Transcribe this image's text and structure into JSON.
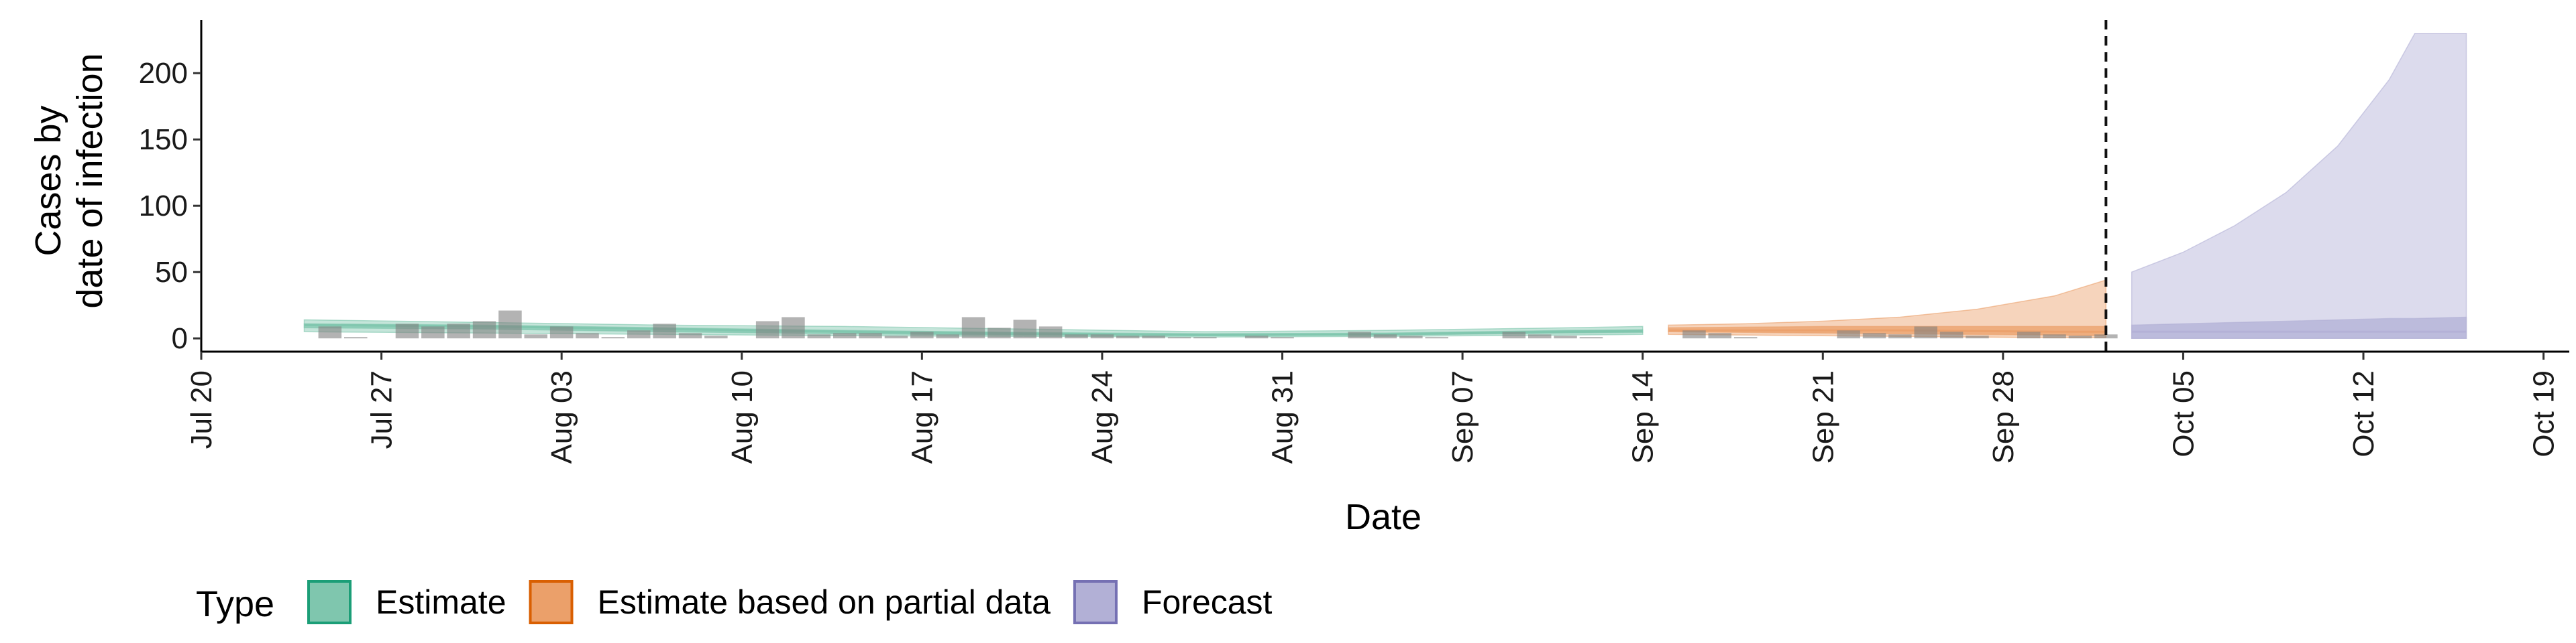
{
  "chart_data": {
    "type": "area",
    "xlabel": "Date",
    "ylabel_lines": [
      "Cases by",
      "date of infection"
    ],
    "x_axis": {
      "type": "date",
      "min": "2020-07-20",
      "max": "2020-10-20",
      "year": 2020
    },
    "ylim": [
      -10,
      240
    ],
    "yticks": [
      0,
      50,
      100,
      150,
      200
    ],
    "xticks": [
      {
        "date": "2020-07-20",
        "label": "Jul 20"
      },
      {
        "date": "2020-07-27",
        "label": "Jul 27"
      },
      {
        "date": "2020-08-03",
        "label": "Aug 03"
      },
      {
        "date": "2020-08-10",
        "label": "Aug 10"
      },
      {
        "date": "2020-08-17",
        "label": "Aug 17"
      },
      {
        "date": "2020-08-24",
        "label": "Aug 24"
      },
      {
        "date": "2020-08-31",
        "label": "Aug 31"
      },
      {
        "date": "2020-09-07",
        "label": "Sep 07"
      },
      {
        "date": "2020-09-14",
        "label": "Sep 14"
      },
      {
        "date": "2020-09-21",
        "label": "Sep 21"
      },
      {
        "date": "2020-09-28",
        "label": "Sep 28"
      },
      {
        "date": "2020-10-05",
        "label": "Oct 05"
      },
      {
        "date": "2020-10-12",
        "label": "Oct 12"
      },
      {
        "date": "2020-10-19",
        "label": "Oct 19"
      }
    ],
    "reference_line": {
      "date": "2020-10-02",
      "style": "dashed"
    },
    "grid": false,
    "legend": {
      "position": "bottom-left",
      "title": "Type",
      "entries": [
        {
          "label": "Estimate",
          "fill": "#7fc6ae",
          "stroke": "#1b9e77"
        },
        {
          "label": "Estimate based on partial data",
          "fill": "#eba06a",
          "stroke": "#d95f02"
        },
        {
          "label": "Forecast",
          "fill": "#b2b0d6",
          "stroke": "#7570b3"
        }
      ]
    },
    "bars": {
      "name": "Reported cases",
      "color": "#808080",
      "dates": [
        "2020-07-25",
        "2020-07-26",
        "2020-07-28",
        "2020-07-29",
        "2020-07-30",
        "2020-07-31",
        "2020-08-01",
        "2020-08-02",
        "2020-08-03",
        "2020-08-04",
        "2020-08-05",
        "2020-08-06",
        "2020-08-07",
        "2020-08-08",
        "2020-08-09",
        "2020-08-11",
        "2020-08-12",
        "2020-08-13",
        "2020-08-14",
        "2020-08-15",
        "2020-08-16",
        "2020-08-17",
        "2020-08-18",
        "2020-08-19",
        "2020-08-20",
        "2020-08-21",
        "2020-08-22",
        "2020-08-23",
        "2020-08-24",
        "2020-08-25",
        "2020-08-26",
        "2020-08-27",
        "2020-08-28",
        "2020-08-30",
        "2020-08-31",
        "2020-09-03",
        "2020-09-04",
        "2020-09-05",
        "2020-09-06",
        "2020-09-09",
        "2020-09-10",
        "2020-09-11",
        "2020-09-12",
        "2020-09-16",
        "2020-09-17",
        "2020-09-18",
        "2020-09-22",
        "2020-09-23",
        "2020-09-24",
        "2020-09-25",
        "2020-09-26",
        "2020-09-27",
        "2020-09-29",
        "2020-09-30",
        "2020-10-01",
        "2020-10-02"
      ],
      "values": [
        9,
        1,
        11,
        9,
        11,
        13,
        21,
        3,
        9,
        4,
        1,
        6,
        11,
        4,
        2,
        13,
        16,
        3,
        4,
        4,
        2,
        5,
        3,
        16,
        8,
        14,
        9,
        3,
        3,
        2,
        2,
        1,
        1,
        2,
        1,
        5,
        3,
        2,
        1,
        5,
        3,
        2,
        1,
        6,
        4,
        1,
        6,
        4,
        3,
        9,
        5,
        2,
        5,
        3,
        2,
        3
      ]
    },
    "series": [
      {
        "name": "Estimate",
        "color": "#7fc6ae",
        "x": [
          "2020-07-24",
          "2020-07-31",
          "2020-08-07",
          "2020-08-14",
          "2020-08-21",
          "2020-08-28",
          "2020-09-04",
          "2020-09-11",
          "2020-09-14"
        ],
        "lower": [
          5,
          4,
          3,
          2,
          1.5,
          1,
          1.5,
          2.5,
          3
        ],
        "upper": [
          14,
          12,
          10,
          9,
          7,
          5,
          6,
          8,
          9
        ],
        "inner_lower": [
          8,
          7,
          5,
          3.5,
          2.5,
          2,
          2.5,
          4,
          4.5
        ],
        "inner_upper": [
          11,
          10,
          8,
          6,
          4.5,
          3.5,
          4,
          6,
          6.5
        ],
        "median": [
          10,
          9,
          7,
          5,
          3.5,
          2.5,
          3,
          5,
          5.5
        ]
      },
      {
        "name": "Estimate based on partial data",
        "color": "#eba06a",
        "x": [
          "2020-09-15",
          "2020-09-18",
          "2020-09-21",
          "2020-09-24",
          "2020-09-27",
          "2020-09-30",
          "2020-10-02"
        ],
        "lower": [
          3,
          2.5,
          2,
          1.5,
          1,
          0.5,
          0.5
        ],
        "upper": [
          10,
          11,
          13,
          16,
          22,
          32,
          44
        ],
        "inner_lower": [
          5,
          4.5,
          4,
          3.5,
          3,
          2.5,
          2
        ],
        "inner_upper": [
          8,
          8.5,
          9,
          9,
          9,
          9,
          9
        ],
        "median": [
          6,
          6,
          6,
          6,
          5.5,
          5,
          5
        ]
      },
      {
        "name": "Forecast",
        "color": "#b2b0d6",
        "x": [
          "2020-10-03",
          "2020-10-05",
          "2020-10-07",
          "2020-10-09",
          "2020-10-11",
          "2020-10-13",
          "2020-10-14",
          "2020-10-16"
        ],
        "lower": [
          0,
          0,
          0,
          0,
          0,
          0,
          0,
          0
        ],
        "upper": [
          50,
          65,
          85,
          110,
          145,
          195,
          230,
          230
        ],
        "inner_lower": [
          0,
          0,
          0,
          0,
          0,
          0,
          0,
          0
        ],
        "inner_upper": [
          10,
          11,
          12,
          13,
          14,
          15,
          15,
          16
        ],
        "median": [
          5,
          5,
          5,
          5,
          5,
          5,
          5,
          5
        ]
      }
    ]
  }
}
